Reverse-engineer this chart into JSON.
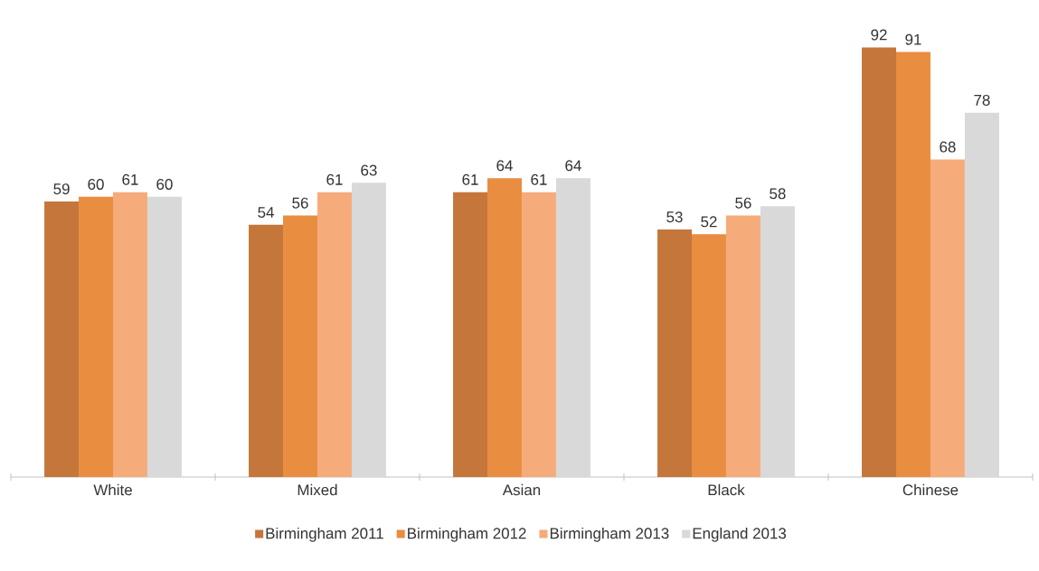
{
  "chart_data": {
    "type": "bar",
    "categories": [
      "White",
      "Mixed",
      "Asian",
      "Black",
      "Chinese"
    ],
    "series": [
      {
        "name": "Birmingham 2011",
        "color": "#c5763a",
        "values": [
          59,
          54,
          61,
          53,
          92
        ]
      },
      {
        "name": "Birmingham 2012",
        "color": "#e98d40",
        "values": [
          60,
          56,
          64,
          52,
          91
        ]
      },
      {
        "name": "Birmingham 2013",
        "color": "#f6ab7b",
        "values": [
          61,
          61,
          61,
          56,
          68
        ]
      },
      {
        "name": "England 2013",
        "color": "#d9d9d9",
        "values": [
          60,
          63,
          64,
          58,
          78
        ]
      }
    ],
    "data_labels": true,
    "legend": "bottom",
    "tick_labels": "x"
  }
}
